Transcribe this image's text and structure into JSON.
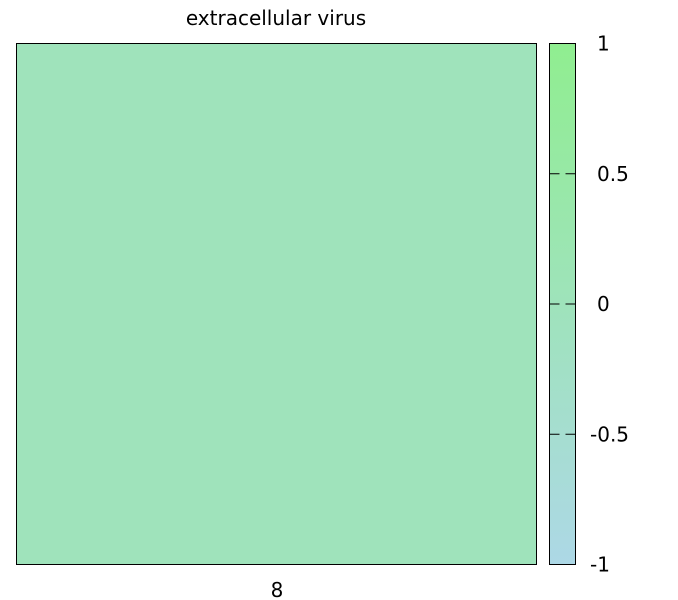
{
  "chart_data": {
    "type": "heatmap",
    "title": "extracellular virus",
    "x_categories": [
      "8"
    ],
    "y_categories": [
      ""
    ],
    "values": [
      [
        0
      ]
    ],
    "colorbar": {
      "min": -1,
      "max": 1,
      "ticks": [
        1,
        0.5,
        0,
        -0.5,
        -1
      ],
      "tick_labels": [
        "1",
        "0.5",
        "0",
        "-0.5",
        "-1"
      ],
      "color_low": "#add8e6",
      "color_high": "#90ee90"
    },
    "xlabel": "",
    "ylabel": "",
    "grid": false
  }
}
